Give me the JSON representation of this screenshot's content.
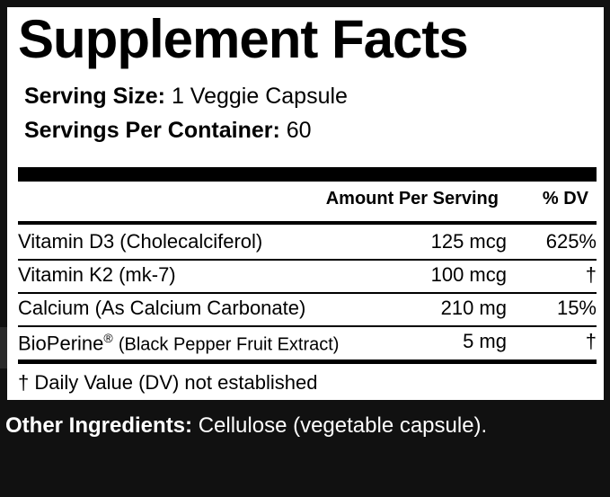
{
  "title": "Supplement Facts",
  "serving_size": {
    "label": "Serving Size:",
    "value": "1 Veggie Capsule"
  },
  "servings_per_container": {
    "label": "Servings Per Container:",
    "value": "60"
  },
  "table": {
    "headers": {
      "amount": "Amount Per Serving",
      "dv": "% DV"
    },
    "rows": [
      {
        "name": "Vitamin D3 (Cholecalciferol)",
        "amount": "125 mcg",
        "dv": "625%"
      },
      {
        "name": "Vitamin K2 (mk-7)",
        "amount": "100 mcg",
        "dv": "†"
      },
      {
        "name": "Calcium (As Calcium Carbonate)",
        "amount": "210 mg",
        "dv": "15%"
      },
      {
        "name": "BioPerine",
        "name_mark": "®",
        "name_detail": "(Black Pepper Fruit Extract)",
        "amount": "5 mg",
        "dv": "†"
      }
    ]
  },
  "footnote": "† Daily Value (DV) not established",
  "other_ingredients": {
    "label": "Other Ingredients:",
    "value": "Cellulose (vegetable capsule)."
  }
}
